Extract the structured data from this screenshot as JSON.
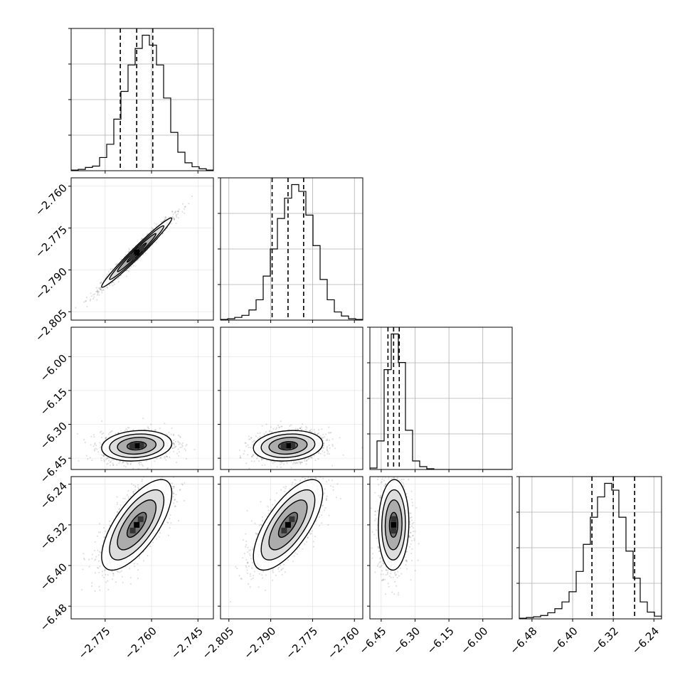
{
  "chart_data": {
    "type": "corner",
    "grid": true,
    "parameters": [
      {
        "ticks": [
          -2.775,
          -2.76,
          -2.745
        ],
        "tick_labels": [
          "−2.775",
          "−2.760",
          "−2.745"
        ],
        "range": [
          -2.786,
          -2.74
        ]
      },
      {
        "ticks": [
          -2.805,
          -2.79,
          -2.775,
          -2.76
        ],
        "tick_labels": [
          "−2.805",
          "−2.790",
          "−2.775",
          "−2.760"
        ],
        "range": [
          -2.808,
          -2.757
        ]
      },
      {
        "ticks": [
          -6.45,
          -6.3,
          -6.15,
          -6.0
        ],
        "tick_labels": [
          "−6.45",
          "−6.30",
          "−6.15",
          "−6.00"
        ],
        "range": [
          -6.5,
          -5.87
        ]
      },
      {
        "ticks": [
          -6.48,
          -6.4,
          -6.32,
          -6.24
        ],
        "tick_labels": [
          "−6.48",
          "−6.40",
          "−6.32",
          "−6.24"
        ],
        "range": [
          -6.505,
          -6.225
        ]
      }
    ],
    "y_tick_labels": [
      [],
      [
        "−2.760",
        "−2.775",
        "−2.790",
        "−2.805"
      ],
      [
        "−6.00",
        "−6.15",
        "−6.30",
        "−6.45"
      ],
      [
        "−6.24",
        "−6.32",
        "−6.40",
        "−6.48"
      ]
    ],
    "y_ticks": [
      [],
      [
        -2.76,
        -2.775,
        -2.79,
        -2.805
      ],
      [
        -6.0,
        -6.15,
        -6.3,
        -6.45
      ],
      [
        -6.24,
        -6.32,
        -6.4,
        -6.48
      ]
    ],
    "quantiles": [
      [
        -2.7701,
        -2.7648,
        -2.7596
      ],
      [
        -2.7895,
        -2.7838,
        -2.7782
      ],
      [
        -6.42,
        -6.395,
        -6.37
      ],
      [
        -6.362,
        -6.32,
        -6.278
      ]
    ],
    "histograms": [
      {
        "counts": [
          1,
          2,
          5,
          7,
          20,
          40,
          78,
          120,
          160,
          185,
          205,
          190,
          160,
          110,
          58,
          28,
          12,
          6,
          3,
          1
        ]
      },
      {
        "counts": [
          1,
          2,
          4,
          7,
          15,
          30,
          65,
          105,
          150,
          180,
          200,
          190,
          155,
          110,
          60,
          30,
          12,
          6,
          2,
          1
        ]
      },
      {
        "counts": [
          2,
          40,
          140,
          190,
          150,
          55,
          12,
          4,
          1,
          0,
          0,
          0,
          0,
          0,
          0,
          0,
          0,
          0,
          0,
          0
        ]
      },
      {
        "counts": [
          1,
          2,
          3,
          5,
          9,
          15,
          25,
          40,
          70,
          110,
          150,
          180,
          200,
          190,
          150,
          100,
          60,
          25,
          10,
          4
        ]
      }
    ],
    "correlations": [
      {
        "i": 1,
        "j": 0,
        "rho": 0.98
      },
      {
        "i": 2,
        "j": 0,
        "rho": 0.15
      },
      {
        "i": 2,
        "j": 1,
        "rho": 0.15
      },
      {
        "i": 3,
        "j": 0,
        "rho": 0.7
      },
      {
        "i": 3,
        "j": 1,
        "rho": 0.7
      },
      {
        "i": 3,
        "j": 2,
        "rho": 0.05
      }
    ],
    "means": [
      -2.7648,
      -2.7838,
      -6.395,
      -6.32
    ],
    "stds": [
      0.0042,
      0.0046,
      0.025,
      0.033
    ]
  }
}
